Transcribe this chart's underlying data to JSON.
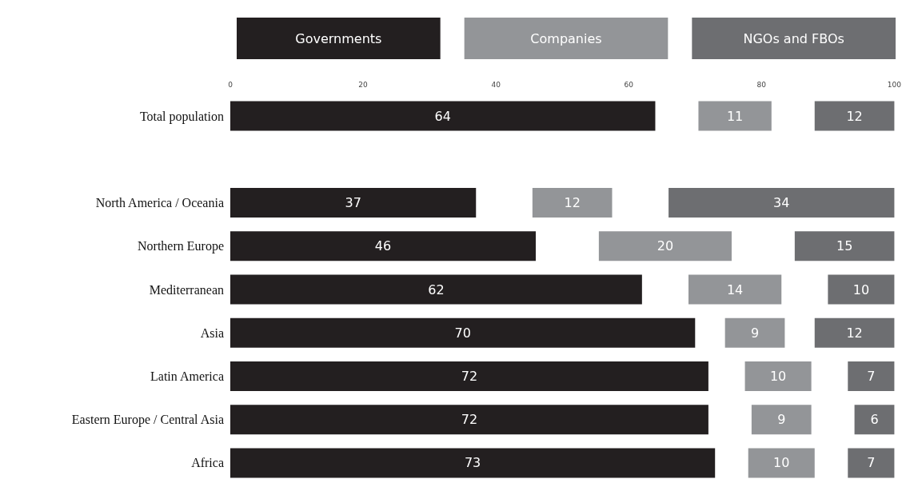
{
  "chart_data": {
    "type": "bar",
    "orientation": "horizontal",
    "categories": [
      "Total population",
      null,
      "North America / Oceania",
      "Northern Europe",
      "Mediterranean",
      "Asia",
      "Latin America",
      "Eastern Europe / Central Asia",
      "Africa"
    ],
    "series": [
      {
        "name": "Governments",
        "color": "#231f20",
        "values": [
          64,
          null,
          37,
          46,
          62,
          70,
          72,
          72,
          73
        ],
        "base": [
          0,
          null,
          0,
          0,
          0,
          0,
          0,
          0,
          0
        ]
      },
      {
        "name": "Companies",
        "color": "#939598",
        "values": [
          11,
          null,
          12,
          20,
          14,
          9,
          10,
          9,
          10
        ],
        "base": [
          70.5,
          null,
          45.5,
          55.5,
          69,
          74.5,
          77.5,
          78.5,
          78
        ]
      },
      {
        "name": "NGOs and FBOs",
        "color": "#6d6e71",
        "values": [
          12,
          null,
          34,
          15,
          10,
          12,
          7,
          6,
          7
        ],
        "base": [
          88,
          null,
          66,
          85,
          90,
          88,
          93,
          94,
          93
        ]
      }
    ],
    "xlim": [
      0,
      100
    ],
    "xticks": [
      0,
      20,
      40,
      60,
      80,
      100
    ],
    "data_labels": true,
    "grid": false,
    "legend": "top"
  }
}
